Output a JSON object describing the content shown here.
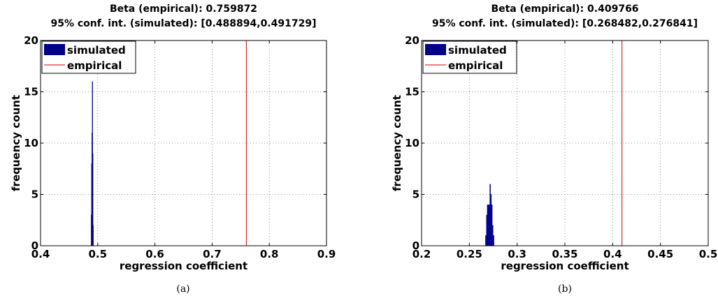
{
  "chart_data": [
    {
      "type": "bar",
      "panel": "a",
      "caption": "(a)",
      "title_line1": "Beta (empirical): 0.759872",
      "title_line2": "95% conf. int. (simulated): [0.488894,0.491729]",
      "xlabel": "regression coefficient",
      "ylabel": "frequency count",
      "xlim": [
        0.4,
        0.9
      ],
      "ylim": [
        0,
        20
      ],
      "xticks": [
        "0.4",
        "0.5",
        "0.6",
        "0.7",
        "0.8",
        "0.9"
      ],
      "yticks": [
        "0",
        "5",
        "10",
        "15",
        "20"
      ],
      "grid": true,
      "legend": {
        "placement": "top-left",
        "entries": [
          "simulated",
          "empirical"
        ]
      },
      "histogram": {
        "name": "simulated",
        "color": "#00008b",
        "bin_width": 0.0006,
        "x": [
          0.4886,
          0.4892,
          0.4898,
          0.4904,
          0.491,
          0.4916
        ],
        "values": [
          3,
          8,
          11,
          16,
          9,
          2
        ]
      },
      "empirical": {
        "name": "empirical",
        "value": 0.759872,
        "color": "#cc0000"
      }
    },
    {
      "type": "bar",
      "panel": "b",
      "caption": "(b)",
      "title_line1": "Beta (empirical): 0.409766",
      "title_line2": "95% conf. int. (simulated): [0.268482,0.276841]",
      "xlabel": "regression coefficient",
      "ylabel": "frequency count",
      "xlim": [
        0.2,
        0.5
      ],
      "ylim": [
        0,
        20
      ],
      "xticks": [
        "0.2",
        "0.25",
        "0.3",
        "0.35",
        "0.4",
        "0.45",
        "0.5"
      ],
      "yticks": [
        "0",
        "5",
        "10",
        "15",
        "20"
      ],
      "grid": true,
      "legend": {
        "placement": "top-left",
        "entries": [
          "simulated",
          "empirical"
        ]
      },
      "histogram": {
        "name": "simulated",
        "color": "#00008b",
        "bin_width": 0.0009,
        "x": [
          0.2673,
          0.2682,
          0.2691,
          0.27,
          0.2709,
          0.2718,
          0.2727,
          0.2736,
          0.2745,
          0.2754,
          0.2763
        ],
        "values": [
          1,
          3,
          4,
          4,
          4,
          6,
          5,
          4,
          2,
          1,
          0
        ]
      },
      "empirical": {
        "name": "empirical",
        "value": 0.409766,
        "color": "#cc0000"
      }
    }
  ]
}
